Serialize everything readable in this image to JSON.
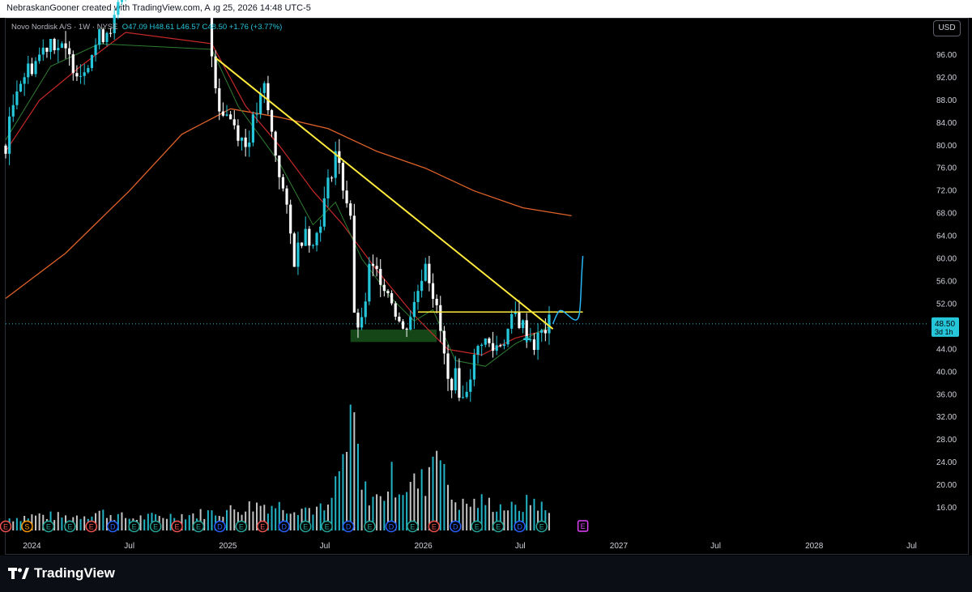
{
  "header": {
    "caption": "NebraskanGooner created with TradingView.com, Aug 25, 2026 14:48 UTC-5"
  },
  "legend": {
    "symbol": "Novo Nordisk A/S · 1W · NYSE",
    "open": "O47.09",
    "high": "H48.61",
    "low": "L46.57",
    "close": "C48.50",
    "change": "+1.76 (+3.77%)"
  },
  "currency_button": "USD",
  "footer": {
    "brand": "TradingView"
  },
  "colors": {
    "up": "#26c6da",
    "down": "#ffffff",
    "trendline": "#ffeb3b",
    "ma_long": "#e0622a",
    "ma_mid": "#c62828",
    "ma_short": "#2e7d32",
    "support_zone": "#1b5e20",
    "projection": "#29b6f6",
    "last_price_bg": "#26c6da"
  },
  "chart_data": {
    "type": "candlestick",
    "interval": "1W",
    "ylim": [
      12,
      100
    ],
    "y_ticks": [
      "96.00",
      "92.00",
      "88.00",
      "84.00",
      "80.00",
      "76.00",
      "72.00",
      "68.00",
      "64.00",
      "60.00",
      "56.00",
      "52.00",
      "44.00",
      "40.00",
      "36.00",
      "32.00",
      "28.00",
      "24.00",
      "20.00",
      "16.00"
    ],
    "x_ticks": [
      "2024",
      "Jul",
      "2025",
      "Jul",
      "2026",
      "Jul",
      "2027",
      "Jul",
      "2028",
      "Jul"
    ],
    "x_tick_dates": [
      "2024-01-01",
      "2024-07-01",
      "2025-01-01",
      "2025-07-01",
      "2026-01-01",
      "2026-07-01",
      "2027-01-01",
      "2027-07-01",
      "2028-01-01",
      "2028-07-01"
    ],
    "x_range": [
      "2023-11-13",
      "2028-08-01"
    ],
    "last_price": {
      "value": 48.5,
      "label": "48.50",
      "countdown": "3d 1h"
    },
    "close_points": [
      [
        "2023-11-13",
        80
      ],
      [
        "2023-12-04",
        91
      ],
      [
        "2024-01-08",
        95
      ],
      [
        "2024-02-05",
        99
      ],
      [
        "2024-03-04",
        96
      ],
      [
        "2024-04-01",
        93
      ],
      [
        "2024-05-06",
        99
      ],
      [
        "2024-06-03",
        102
      ],
      [
        "2024-06-24",
        108
      ],
      [
        "2024-12-02",
        96
      ],
      [
        "2024-12-16",
        87
      ],
      [
        "2025-01-06",
        85
      ],
      [
        "2025-02-03",
        80
      ],
      [
        "2025-02-24",
        86
      ],
      [
        "2025-03-10",
        90
      ],
      [
        "2025-03-24",
        82
      ],
      [
        "2025-04-14",
        72
      ],
      [
        "2025-05-05",
        60
      ],
      [
        "2025-05-26",
        66
      ],
      [
        "2025-06-09",
        62
      ],
      [
        "2025-06-30",
        70
      ],
      [
        "2025-07-21",
        79
      ],
      [
        "2025-08-04",
        73
      ],
      [
        "2025-08-18",
        68
      ],
      [
        "2025-08-25",
        49
      ],
      [
        "2025-09-08",
        48
      ],
      [
        "2025-09-22",
        58
      ],
      [
        "2025-10-13",
        57
      ],
      [
        "2025-11-03",
        53
      ],
      [
        "2025-11-24",
        47
      ],
      [
        "2025-12-15",
        52
      ],
      [
        "2026-01-05",
        60
      ],
      [
        "2026-01-19",
        54
      ],
      [
        "2026-02-02",
        47
      ],
      [
        "2026-02-16",
        38
      ],
      [
        "2026-03-02",
        39
      ],
      [
        "2026-03-16",
        35
      ],
      [
        "2026-03-30",
        40
      ],
      [
        "2026-04-20",
        46
      ],
      [
        "2026-05-11",
        44
      ],
      [
        "2026-06-01",
        46
      ],
      [
        "2026-06-22",
        50
      ],
      [
        "2026-07-06",
        48
      ],
      [
        "2026-07-27",
        45
      ],
      [
        "2026-08-24",
        48.5
      ]
    ],
    "volume_points": [
      [
        "2023-11-20",
        1.2
      ],
      [
        "2024-01-15",
        1.5
      ],
      [
        "2024-03-11",
        1.3
      ],
      [
        "2024-05-06",
        1.8
      ],
      [
        "2024-07-01",
        1.2
      ],
      [
        "2024-09-02",
        1.4
      ],
      [
        "2024-11-04",
        1.6
      ],
      [
        "2025-01-06",
        2.0
      ],
      [
        "2025-03-03",
        2.6
      ],
      [
        "2025-05-05",
        2.3
      ],
      [
        "2025-07-07",
        2.0
      ],
      [
        "2025-08-25",
        10.5
      ],
      [
        "2025-09-08",
        4.0
      ],
      [
        "2025-10-13",
        3.0
      ],
      [
        "2025-11-03",
        5.1
      ],
      [
        "2025-11-24",
        4.3
      ],
      [
        "2026-01-05",
        4.8
      ],
      [
        "2026-01-19",
        7.8
      ],
      [
        "2026-02-02",
        10.0
      ],
      [
        "2026-02-16",
        3.5
      ],
      [
        "2026-03-16",
        2.5
      ],
      [
        "2026-04-20",
        2.8
      ],
      [
        "2026-05-18",
        2.5
      ],
      [
        "2026-06-22",
        2.1
      ],
      [
        "2026-07-27",
        3.0
      ],
      [
        "2026-08-24",
        1.6
      ]
    ],
    "ma_long_points": [
      [
        "2023-11-13",
        53
      ],
      [
        "2024-03-04",
        61
      ],
      [
        "2024-07-01",
        72
      ],
      [
        "2024-10-07",
        82
      ],
      [
        "2025-01-06",
        86.5
      ],
      [
        "2025-04-07",
        85
      ],
      [
        "2025-07-07",
        83
      ],
      [
        "2025-10-06",
        79
      ],
      [
        "2026-01-05",
        76
      ],
      [
        "2026-04-06",
        72
      ],
      [
        "2026-07-06",
        69
      ],
      [
        "2026-10-05",
        67.6
      ]
    ],
    "ma_mid_points": [
      [
        "2023-11-13",
        79
      ],
      [
        "2024-01-15",
        88
      ],
      [
        "2024-04-01",
        94
      ],
      [
        "2024-06-24",
        100
      ],
      [
        "2024-12-02",
        98
      ],
      [
        "2025-02-03",
        87
      ],
      [
        "2025-04-07",
        80
      ],
      [
        "2025-06-09",
        72
      ],
      [
        "2025-08-04",
        66
      ],
      [
        "2025-10-06",
        58
      ],
      [
        "2025-12-15",
        50
      ],
      [
        "2026-02-16",
        44
      ],
      [
        "2026-04-20",
        43
      ],
      [
        "2026-06-22",
        46
      ],
      [
        "2026-08-24",
        47.5
      ]
    ],
    "ma_short_points": [
      [
        "2023-11-13",
        81
      ],
      [
        "2024-02-05",
        94
      ],
      [
        "2024-05-06",
        98
      ],
      [
        "2024-12-02",
        97
      ],
      [
        "2025-01-20",
        87
      ],
      [
        "2025-04-07",
        77
      ],
      [
        "2025-06-09",
        66
      ],
      [
        "2025-07-21",
        70
      ],
      [
        "2025-09-08",
        60
      ],
      [
        "2025-11-03",
        53
      ],
      [
        "2025-12-15",
        49
      ],
      [
        "2026-01-19",
        51
      ],
      [
        "2026-03-02",
        42
      ],
      [
        "2026-04-27",
        41
      ],
      [
        "2026-06-22",
        45
      ],
      [
        "2026-08-24",
        48
      ]
    ],
    "annotations": {
      "downtrend_line": {
        "from": [
          "2024-12-09",
          95.5
        ],
        "to": [
          "2026-08-31",
          47.6
        ]
      },
      "resistance_line": {
        "from": [
          "2025-12-22",
          50.6
        ],
        "to": [
          "2026-10-26",
          50.6
        ]
      },
      "support_zone": {
        "from": "2025-08-18",
        "to": "2026-01-26",
        "low": 45.3,
        "high": 47.5
      },
      "projection": [
        [
          "2026-08-31",
          48.5
        ],
        [
          "2026-09-14",
          51
        ],
        [
          "2026-10-05",
          49.5
        ],
        [
          "2026-10-19",
          52
        ],
        [
          "2026-10-26",
          60.5
        ]
      ]
    },
    "event_markers": [
      "E",
      "S",
      "E",
      "E",
      "E",
      "D",
      "E",
      "E",
      "E",
      "E",
      "D",
      "E",
      "E",
      "D",
      "E",
      "E",
      "D",
      "E",
      "D",
      "E",
      "E",
      "D",
      "E",
      "E",
      "D",
      "E"
    ],
    "future_event": "E"
  }
}
